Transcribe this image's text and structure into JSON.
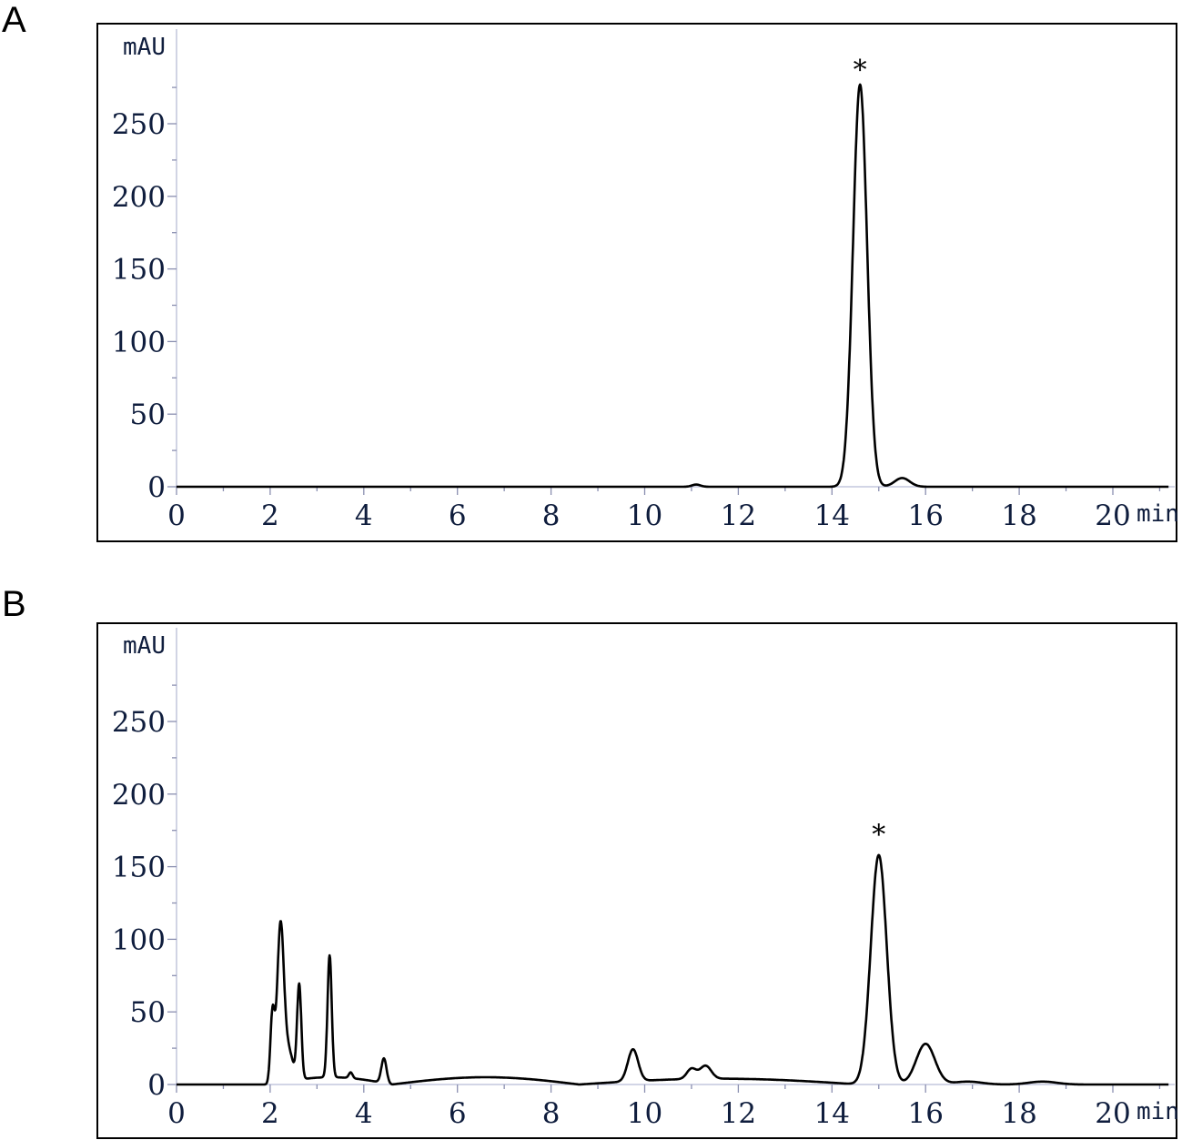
{
  "panels": [
    {
      "letter": "A",
      "y_unit": "mAU",
      "x_unit": "min",
      "marker": "*",
      "marker_x": 14.6
    },
    {
      "letter": "B",
      "y_unit": "mAU",
      "x_unit": "min",
      "marker": "*",
      "marker_x": 15.0
    }
  ],
  "chart_data": [
    {
      "type": "line",
      "panel": "A",
      "xlabel": "min",
      "ylabel": "mAU",
      "xlim": [
        0,
        21.2
      ],
      "ylim": [
        0,
        300
      ],
      "x_ticks": [
        "0",
        "2",
        "4",
        "6",
        "8",
        "10",
        "12",
        "14",
        "16",
        "18",
        "20"
      ],
      "y_ticks": [
        "0",
        "50",
        "100",
        "150",
        "200",
        "250"
      ],
      "grid": false,
      "baseline": 0,
      "peaks": [
        {
          "t": 11.1,
          "h": 1.5,
          "w": 0.09
        },
        {
          "t": 14.6,
          "h": 277,
          "w": 0.15
        },
        {
          "t": 15.5,
          "h": 6,
          "w": 0.16
        }
      ],
      "annotations": [
        {
          "text": "*",
          "x": 14.6,
          "y": 277
        }
      ]
    },
    {
      "type": "line",
      "panel": "B",
      "xlabel": "min",
      "ylabel": "mAU",
      "xlim": [
        0,
        21.2
      ],
      "ylim": [
        0,
        300
      ],
      "x_ticks": [
        "0",
        "2",
        "4",
        "6",
        "8",
        "10",
        "12",
        "14",
        "16",
        "18",
        "20"
      ],
      "y_ticks": [
        "0",
        "50",
        "100",
        "150",
        "200",
        "250"
      ],
      "grid": false,
      "baseline": 0,
      "baseline_shift": [
        {
          "t0": 2.0,
          "t1": 4.6,
          "rise": 5
        },
        {
          "t0": 4.6,
          "t1": 8.6,
          "rise": 5
        },
        {
          "t0": 8.6,
          "t1": 14.6,
          "rise": 4
        }
      ],
      "peaks": [
        {
          "t": 2.05,
          "h": 48,
          "w": 0.045
        },
        {
          "t": 2.22,
          "h": 105,
          "w": 0.07
        },
        {
          "t": 2.38,
          "h": 22,
          "w": 0.1
        },
        {
          "t": 2.62,
          "h": 65,
          "w": 0.045
        },
        {
          "t": 3.27,
          "h": 84,
          "w": 0.045
        },
        {
          "t": 3.72,
          "h": 4,
          "w": 0.04
        },
        {
          "t": 4.43,
          "h": 17,
          "w": 0.055
        },
        {
          "t": 9.75,
          "h": 22,
          "w": 0.11
        },
        {
          "t": 11.0,
          "h": 7,
          "w": 0.1
        },
        {
          "t": 11.3,
          "h": 9,
          "w": 0.12
        },
        {
          "t": 15.0,
          "h": 158,
          "w": 0.17
        },
        {
          "t": 16.0,
          "h": 28,
          "w": 0.2
        },
        {
          "t": 16.9,
          "h": 2,
          "w": 0.3
        },
        {
          "t": 18.5,
          "h": 2,
          "w": 0.3
        }
      ],
      "annotations": [
        {
          "text": "*",
          "x": 15.0,
          "y": 162
        }
      ]
    }
  ]
}
